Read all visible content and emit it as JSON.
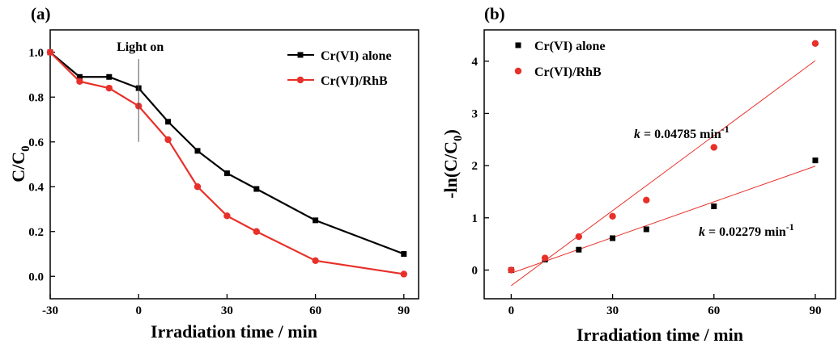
{
  "chart_data": [
    {
      "panel": "(a)",
      "type": "line",
      "xlabel": "Irradiation time / min",
      "ylabel": "C/C",
      "ylabel_sub": "0",
      "xlim": [
        -30,
        95
      ],
      "ylim": [
        -0.1,
        1.1
      ],
      "xticks": [
        -30,
        0,
        30,
        60,
        90
      ],
      "yticks": [
        0.0,
        0.2,
        0.4,
        0.6,
        0.8,
        1.0
      ],
      "ytick_labels": [
        "0.0",
        "0.2",
        "0.4",
        "0.6",
        "0.8",
        "1.0"
      ],
      "legend_position": "top-right",
      "annotation": {
        "text": "Light on",
        "x": 0
      },
      "series": [
        {
          "name": "Cr(VI) alone",
          "color": "#000000",
          "marker": "square",
          "x": [
            -30,
            -20,
            -10,
            0,
            10,
            20,
            30,
            40,
            60,
            90
          ],
          "y": [
            1.0,
            0.89,
            0.89,
            0.84,
            0.69,
            0.56,
            0.46,
            0.39,
            0.25,
            0.1
          ]
        },
        {
          "name": "Cr(VI)/RhB",
          "color": "#e8302a",
          "marker": "circle",
          "x": [
            -30,
            -20,
            -10,
            0,
            10,
            20,
            30,
            40,
            60,
            90
          ],
          "y": [
            1.0,
            0.87,
            0.84,
            0.76,
            0.61,
            0.4,
            0.27,
            0.2,
            0.07,
            0.01
          ]
        }
      ]
    },
    {
      "panel": "(b)",
      "type": "scatter",
      "xlabel": "Irradiation time / min",
      "ylabel": "-ln(C/C",
      "ylabel_sub": "0",
      "ylabel_end": ")",
      "xlim": [
        -8,
        96
      ],
      "ylim": [
        -0.55,
        4.6
      ],
      "xticks": [
        0,
        30,
        60,
        90
      ],
      "yticks": [
        0,
        1,
        2,
        3,
        4
      ],
      "legend_position": "top-left",
      "series": [
        {
          "name": "Cr(VI) alone",
          "color": "#000000",
          "marker": "square",
          "x": [
            0,
            10,
            20,
            30,
            40,
            60,
            90
          ],
          "y": [
            0.0,
            0.2,
            0.39,
            0.61,
            0.78,
            1.22,
            2.1
          ],
          "fit": {
            "x": [
              0,
              90
            ],
            "y": [
              -0.06,
              1.99
            ]
          },
          "label_prefix": "k",
          "label_value": " = 0.02279 min",
          "label_sup": "-1"
        },
        {
          "name": "Cr(VI)/RhB",
          "color": "#e8302a",
          "marker": "circle",
          "x": [
            0,
            10,
            20,
            30,
            40,
            60,
            90
          ],
          "y": [
            0.0,
            0.23,
            0.64,
            1.03,
            1.34,
            2.35,
            4.34
          ],
          "fit": {
            "x": [
              0,
              90
            ],
            "y": [
              -0.3,
              4.01
            ]
          },
          "label_prefix": "k",
          "label_value": " = 0.04785 min",
          "label_sup": "-1"
        }
      ]
    }
  ]
}
